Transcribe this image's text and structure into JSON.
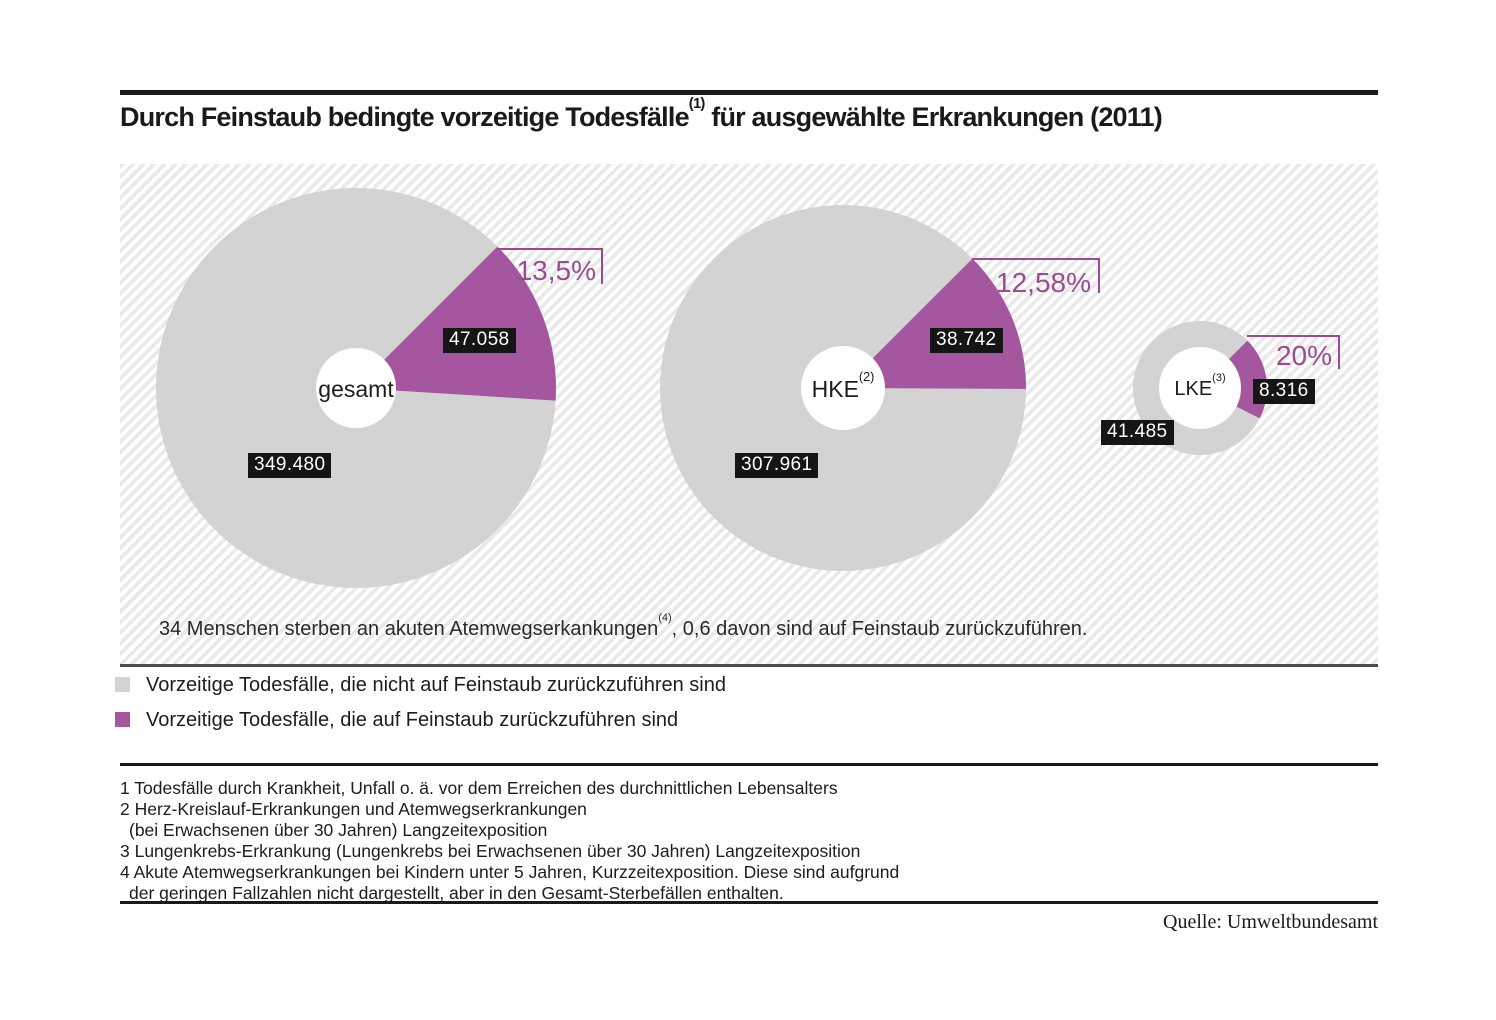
{
  "title": {
    "prefix": "Durch Feinstaub bedingte vorzeitige Todesfälle",
    "sup": "(1)",
    "suffix": " für ausgewählte Erkrankungen (2011)"
  },
  "colors": {
    "purple": "#a4569e",
    "purple_text": "#9a4b92",
    "gray": "#d3d3d4",
    "label_bg": "#151515",
    "label_text": "#ffffff"
  },
  "chart_data": {
    "type": "pie",
    "title": "Durch Feinstaub bedingte vorzeitige Todesfälle für ausgewählte Erkrankungen (2011)",
    "start_angle_deg": -45,
    "series": [
      {
        "name": "gesamt",
        "name_sup": "",
        "percent": 13.5,
        "percent_label": "13,5%",
        "feinstaub_value": 47058,
        "feinstaub_label": "47.058",
        "other_value": 349480,
        "other_label": "349.480"
      },
      {
        "name": "HKE",
        "name_sup": "(2)",
        "percent": 12.58,
        "percent_label": "12,58%",
        "feinstaub_value": 38742,
        "feinstaub_label": "38.742",
        "other_value": 307961,
        "other_label": "307.961"
      },
      {
        "name": "LKE",
        "name_sup": "(3)",
        "percent": 20,
        "percent_label": "20%",
        "feinstaub_value": 8316,
        "feinstaub_label": "8.316",
        "other_value": 41485,
        "other_label": "41.485"
      }
    ],
    "annotation": {
      "prefix": "34 Menschen sterben an akuten Atemwegserkankungen",
      "sup": "(4)",
      "suffix": ", 0,6 davon sind auf Feinstaub zurückzuführen."
    }
  },
  "legend": {
    "items": [
      {
        "swatch": "gray",
        "label": "Vorzeitige Todesfälle, die nicht auf Feinstaub zurückzuführen sind"
      },
      {
        "swatch": "purple",
        "label": "Vorzeitige Todesfälle, die auf Feinstaub zurückzuführen sind"
      }
    ]
  },
  "footnotes": {
    "lines": [
      "1 Todesfälle durch Krankheit, Unfall o. ä. vor dem Erreichen des durchnittlichen Lebensalters",
      "2 Herz-Kreislauf-Erkrankungen und Atemwegserkrankungen",
      "(bei Erwachsenen über 30 Jahren) Langzeitexposition",
      "3 Lungenkrebs-Erkrankung (Lungenkrebs bei Erwachsenen über 30 Jahren) Langzeitexposition",
      "4 Akute Atemwegserkrankungen bei Kindern unter 5 Jahren, Kurzzeitexposition. Diese sind aufgrund",
      "der geringen Fallzahlen nicht dargestellt, aber in den Gesamt-Sterbefällen enthalten."
    ]
  },
  "source": "Quelle: Umweltbundesamt"
}
